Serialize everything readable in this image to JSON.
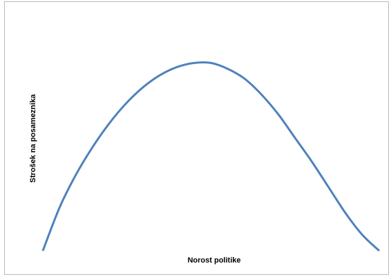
{
  "chart_data": {
    "type": "line",
    "title": "",
    "xlabel": "Norost politike",
    "ylabel": "Strošek na posameznika",
    "grid": false,
    "legend": "none",
    "xlim": [
      0,
      1
    ],
    "ylim": [
      0,
      1
    ],
    "series": [
      {
        "color": "#4f81bd",
        "x": [
          0.0,
          0.05,
          0.1,
          0.15,
          0.2,
          0.25,
          0.3,
          0.35,
          0.4,
          0.45,
          0.5,
          0.55,
          0.6,
          0.65,
          0.7,
          0.75,
          0.8,
          0.85,
          0.9,
          0.95,
          1.0
        ],
        "y": [
          0.0,
          0.22,
          0.39,
          0.53,
          0.65,
          0.75,
          0.83,
          0.89,
          0.93,
          0.95,
          0.95,
          0.92,
          0.87,
          0.79,
          0.69,
          0.57,
          0.45,
          0.32,
          0.19,
          0.08,
          0.0
        ]
      }
    ]
  }
}
